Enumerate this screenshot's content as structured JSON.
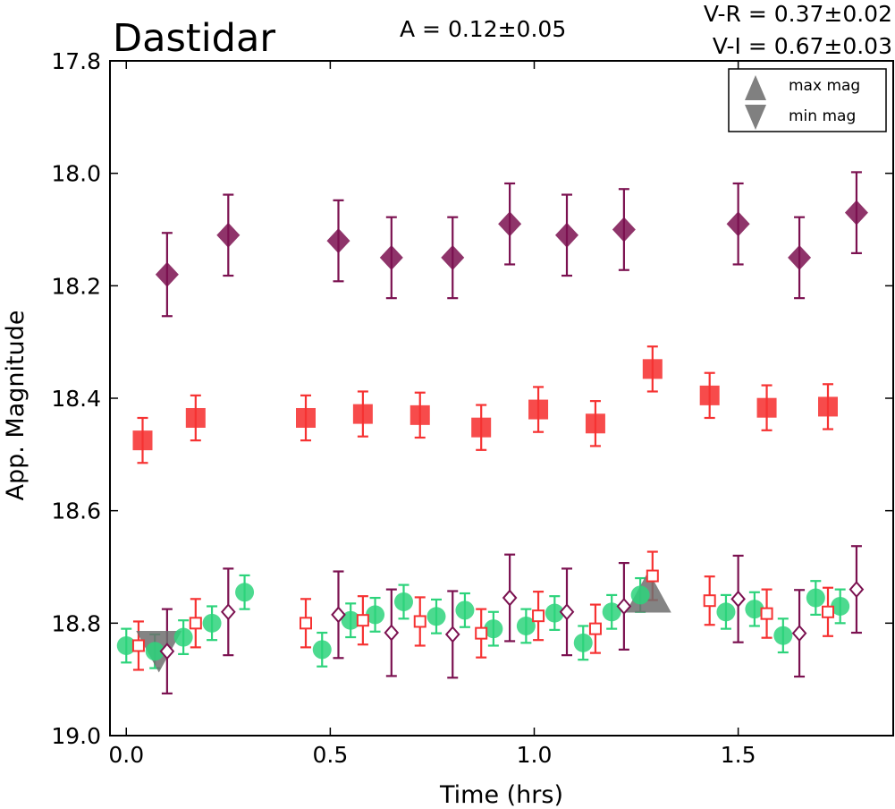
{
  "chart_data": {
    "type": "scatter",
    "title": "Dastidar",
    "annotations": {
      "amplitude": "A  = 0.12±0.05",
      "v_r": "V-R = 0.37±0.02",
      "v_i": "V-I  = 0.67±0.03"
    },
    "xlabel": "Time (hrs)",
    "ylabel": "App. Magnitude",
    "xlim": [
      -0.04,
      1.88
    ],
    "ylim": [
      19.0,
      17.8
    ],
    "y_inverted": true,
    "xticks": [
      0.0,
      0.5,
      1.0,
      1.5
    ],
    "xtick_labels": [
      "0.0",
      "0.5",
      "1.0",
      "1.5"
    ],
    "yticks": [
      17.8,
      18.0,
      18.2,
      18.4,
      18.6,
      18.8,
      19.0
    ],
    "ytick_labels": [
      "17.8",
      "18.0",
      "18.2",
      "18.4",
      "18.6",
      "18.8",
      "19.0"
    ],
    "grid": false,
    "legend": {
      "position": "top-right",
      "entries": [
        "max mag",
        "min mag"
      ]
    },
    "colors": {
      "purple": "#7b1150",
      "red": "#f63232",
      "green": "#2dd37b",
      "gray": "#6e6e6e"
    },
    "series": [
      {
        "marker": "diamond-filled",
        "color": "#7b1150",
        "points": [
          {
            "x": 0.1,
            "y": 18.18,
            "err": 0.074
          },
          {
            "x": 0.25,
            "y": 18.11,
            "err": 0.072
          },
          {
            "x": 0.52,
            "y": 18.12,
            "err": 0.072
          },
          {
            "x": 0.65,
            "y": 18.15,
            "err": 0.072
          },
          {
            "x": 0.8,
            "y": 18.15,
            "err": 0.072
          },
          {
            "x": 0.94,
            "y": 18.09,
            "err": 0.072
          },
          {
            "x": 1.08,
            "y": 18.11,
            "err": 0.072
          },
          {
            "x": 1.22,
            "y": 18.1,
            "err": 0.072
          },
          {
            "x": 1.5,
            "y": 18.09,
            "err": 0.072
          },
          {
            "x": 1.65,
            "y": 18.15,
            "err": 0.072
          },
          {
            "x": 1.79,
            "y": 18.07,
            "err": 0.072
          }
        ]
      },
      {
        "marker": "square-filled",
        "color": "#f63232",
        "points": [
          {
            "x": 0.04,
            "y": 18.475,
            "err": 0.04
          },
          {
            "x": 0.17,
            "y": 18.435,
            "err": 0.04
          },
          {
            "x": 0.44,
            "y": 18.435,
            "err": 0.04
          },
          {
            "x": 0.58,
            "y": 18.428,
            "err": 0.04
          },
          {
            "x": 0.72,
            "y": 18.43,
            "err": 0.04
          },
          {
            "x": 0.87,
            "y": 18.452,
            "err": 0.04
          },
          {
            "x": 1.01,
            "y": 18.42,
            "err": 0.04
          },
          {
            "x": 1.15,
            "y": 18.445,
            "err": 0.04
          },
          {
            "x": 1.29,
            "y": 18.348,
            "err": 0.04
          },
          {
            "x": 1.43,
            "y": 18.395,
            "err": 0.04
          },
          {
            "x": 1.57,
            "y": 18.417,
            "err": 0.04
          },
          {
            "x": 1.72,
            "y": 18.415,
            "err": 0.04
          }
        ]
      },
      {
        "marker": "circle-filled",
        "color": "#2dd37b",
        "points": [
          {
            "x": 0.0,
            "y": 18.84,
            "err": 0.03
          },
          {
            "x": 0.07,
            "y": 18.85,
            "err": 0.03
          },
          {
            "x": 0.14,
            "y": 18.825,
            "err": 0.03
          },
          {
            "x": 0.21,
            "y": 18.8,
            "err": 0.03
          },
          {
            "x": 0.29,
            "y": 18.745,
            "err": 0.03
          },
          {
            "x": 0.48,
            "y": 18.847,
            "err": 0.03
          },
          {
            "x": 0.55,
            "y": 18.795,
            "err": 0.03
          },
          {
            "x": 0.61,
            "y": 18.785,
            "err": 0.03
          },
          {
            "x": 0.68,
            "y": 18.762,
            "err": 0.03
          },
          {
            "x": 0.76,
            "y": 18.788,
            "err": 0.03
          },
          {
            "x": 0.83,
            "y": 18.777,
            "err": 0.03
          },
          {
            "x": 0.9,
            "y": 18.81,
            "err": 0.03
          },
          {
            "x": 0.98,
            "y": 18.805,
            "err": 0.03
          },
          {
            "x": 1.05,
            "y": 18.782,
            "err": 0.03
          },
          {
            "x": 1.12,
            "y": 18.835,
            "err": 0.03
          },
          {
            "x": 1.19,
            "y": 18.78,
            "err": 0.03
          },
          {
            "x": 1.26,
            "y": 18.75,
            "err": 0.03
          },
          {
            "x": 1.47,
            "y": 18.78,
            "err": 0.03
          },
          {
            "x": 1.54,
            "y": 18.775,
            "err": 0.03
          },
          {
            "x": 1.61,
            "y": 18.822,
            "err": 0.03
          },
          {
            "x": 1.69,
            "y": 18.755,
            "err": 0.03
          },
          {
            "x": 1.75,
            "y": 18.77,
            "err": 0.03
          }
        ]
      },
      {
        "marker": "square-open",
        "color": "#f63232",
        "points": [
          {
            "x": 0.03,
            "y": 18.84,
            "err": 0.043
          },
          {
            "x": 0.17,
            "y": 18.8,
            "err": 0.043
          },
          {
            "x": 0.44,
            "y": 18.8,
            "err": 0.043
          },
          {
            "x": 0.58,
            "y": 18.795,
            "err": 0.043
          },
          {
            "x": 0.72,
            "y": 18.797,
            "err": 0.043
          },
          {
            "x": 0.87,
            "y": 18.818,
            "err": 0.043
          },
          {
            "x": 1.01,
            "y": 18.787,
            "err": 0.043
          },
          {
            "x": 1.15,
            "y": 18.81,
            "err": 0.043
          },
          {
            "x": 1.29,
            "y": 18.716,
            "err": 0.043
          },
          {
            "x": 1.43,
            "y": 18.76,
            "err": 0.043
          },
          {
            "x": 1.57,
            "y": 18.783,
            "err": 0.043
          },
          {
            "x": 1.72,
            "y": 18.78,
            "err": 0.043
          }
        ]
      },
      {
        "marker": "diamond-open",
        "color": "#7b1150",
        "points": [
          {
            "x": 0.1,
            "y": 18.85,
            "err": 0.075
          },
          {
            "x": 0.25,
            "y": 18.78,
            "err": 0.077
          },
          {
            "x": 0.52,
            "y": 18.785,
            "err": 0.077
          },
          {
            "x": 0.65,
            "y": 18.817,
            "err": 0.077
          },
          {
            "x": 0.8,
            "y": 18.82,
            "err": 0.077
          },
          {
            "x": 0.94,
            "y": 18.755,
            "err": 0.077
          },
          {
            "x": 1.08,
            "y": 18.78,
            "err": 0.077
          },
          {
            "x": 1.22,
            "y": 18.77,
            "err": 0.077
          },
          {
            "x": 1.5,
            "y": 18.757,
            "err": 0.077
          },
          {
            "x": 1.65,
            "y": 18.818,
            "err": 0.077
          },
          {
            "x": 1.79,
            "y": 18.74,
            "err": 0.077
          }
        ]
      }
    ],
    "extrema": [
      {
        "type": "min mag",
        "x": 0.08,
        "y": 18.84
      },
      {
        "type": "max mag",
        "x": 1.28,
        "y": 18.755
      }
    ]
  }
}
